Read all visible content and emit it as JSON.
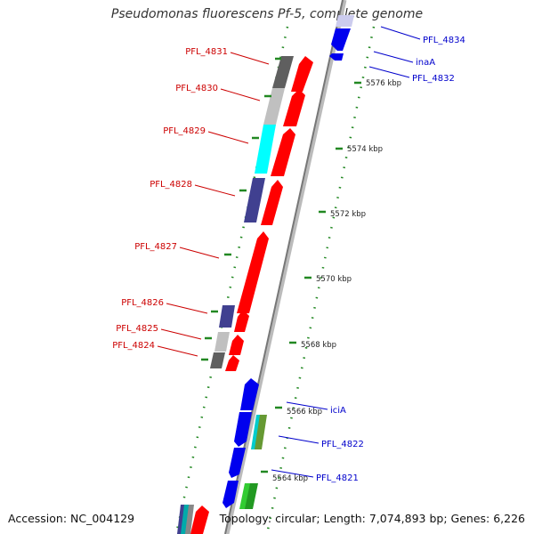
{
  "title": "Pseudomonas fluorescens Pf-5, complete genome",
  "accession": "Accession: NC_004129",
  "topology": "Topology: circular; Length: 7,074,893 bp; Genes: 6,226",
  "colors": {
    "label_left": "#cc0000",
    "label_right": "#0000cc",
    "backbone": "#999999",
    "dots": "#228822"
  },
  "left_labels": [
    "PFL_4831",
    "PFL_4830",
    "PFL_4829",
    "PFL_4828",
    "PFL_4827",
    "PFL_4826",
    "PFL_4825",
    "PFL_4824"
  ],
  "right_labels": [
    "PFL_4834",
    "inaA",
    "PFL_4832",
    "iciA",
    "PFL_4822",
    "PFL_4821"
  ],
  "ticks": [
    "5576 kbp",
    "5574 kbp",
    "5572 kbp",
    "5570 kbp",
    "5568 kbp",
    "5566 kbp",
    "5564 kbp"
  ],
  "features": [
    {
      "ring": "forward",
      "strand": "-",
      "color": "#0000ee",
      "gene": "PFL_4834"
    },
    {
      "ring": "forward",
      "strand": "-",
      "color": "#0000ee",
      "gene": "inaA"
    },
    {
      "ring": "forward",
      "strand": "+",
      "color": "#ff0000",
      "gene": "PFL_4831"
    },
    {
      "ring": "forward",
      "strand": "+",
      "color": "#ff0000",
      "gene": "PFL_4830"
    },
    {
      "ring": "forward",
      "strand": "+",
      "color": "#ff0000",
      "gene": "PFL_4829"
    },
    {
      "ring": "forward",
      "strand": "+",
      "color": "#ff0000",
      "gene": "PFL_4828"
    },
    {
      "ring": "forward",
      "strand": "+",
      "color": "#ff0000",
      "gene": "PFL_4827"
    },
    {
      "ring": "forward",
      "strand": "+",
      "color": "#ff0000",
      "gene": "PFL_4826"
    },
    {
      "ring": "forward",
      "strand": "+",
      "color": "#ff0000",
      "gene": "PFL_4825"
    },
    {
      "ring": "forward",
      "strand": "+",
      "color": "#ff0000",
      "gene": "PFL_4824"
    },
    {
      "ring": "forward",
      "strand": "-",
      "color": "#0000ee",
      "gene": "iciA"
    },
    {
      "ring": "forward",
      "strand": "-",
      "color": "#0000ee",
      "gene": "PFL_4822"
    },
    {
      "ring": "forward",
      "strand": "-",
      "color": "#0000ee",
      "gene": "PFL_4821"
    },
    {
      "ring": "cog",
      "color": "#5f5f5f",
      "gene": "PFL_4831"
    },
    {
      "ring": "cog",
      "color": "#c0c0c0",
      "gene": "PFL_4830"
    },
    {
      "ring": "cog",
      "color": "#00ffff",
      "gene": "PFL_4829"
    },
    {
      "ring": "cog",
      "color": "#404090",
      "gene": "PFL_4828"
    },
    {
      "ring": "cog",
      "color": "#404090",
      "gene": "PFL_4826"
    },
    {
      "ring": "cog",
      "color": "#c0c0c0",
      "gene": "PFL_4825"
    },
    {
      "ring": "cog",
      "color": "#5f5f5f",
      "gene": "PFL_4824"
    },
    {
      "ring": "cog",
      "color": "#00cccc",
      "gene": "iciA"
    },
    {
      "ring": "cog",
      "color": "#669933",
      "gene": "PFL_4822"
    },
    {
      "ring": "cog",
      "color": "#33cc33",
      "gene": "PFL_4821"
    }
  ]
}
